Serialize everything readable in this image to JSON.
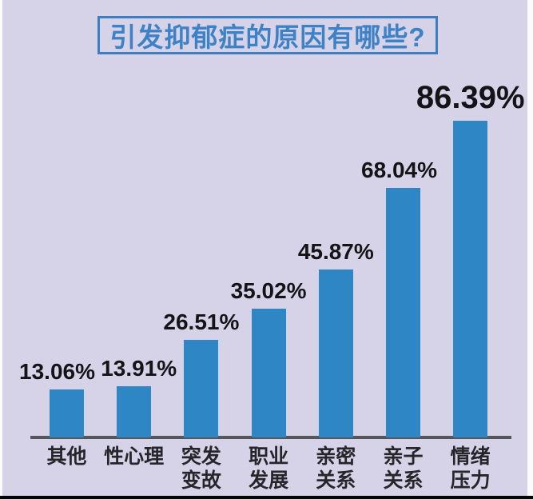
{
  "chart_data": {
    "type": "bar",
    "title": "引发抑郁症的原因有哪些?",
    "categories": [
      "其他",
      "性心理",
      "突发变故",
      "职业发展",
      "亲密关系",
      "亲子关系",
      "情绪压力"
    ],
    "display_categories": [
      "其他",
      "性心理",
      "突发\n变故",
      "职业\n发展",
      "亲密\n关系",
      "亲子\n关系",
      "情绪\n压力"
    ],
    "values": [
      13.06,
      13.91,
      26.51,
      35.02,
      45.87,
      68.04,
      86.39
    ],
    "data_labels": [
      "13.06%",
      "13.91%",
      "26.51%",
      "35.02%",
      "45.87%",
      "68.04%",
      "86.39%"
    ],
    "unit": "percent",
    "xlabel": "",
    "ylabel": "",
    "ylim": [
      0,
      100
    ],
    "grid": false,
    "legend": false,
    "colors": {
      "bar": "#2e86c4",
      "background": "#d6d3e8",
      "title_text": "#3d82c6",
      "title_border": "#3d7ec3",
      "axis_line": "#55565a",
      "value_label_text": "#141417",
      "category_label_text": "#26262a"
    }
  }
}
